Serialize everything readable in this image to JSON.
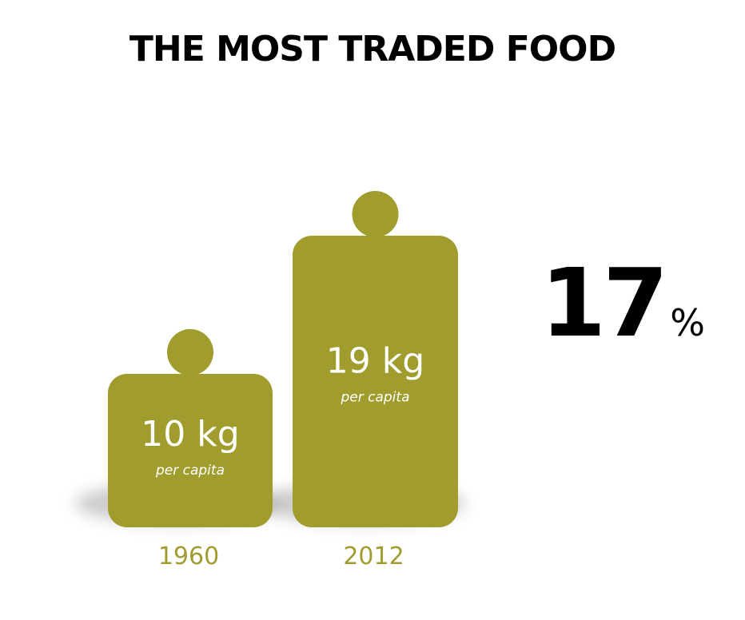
{
  "title": "THE MOST TRADED FOOD",
  "highlight": {
    "value": "17",
    "unit": "%"
  },
  "colors": {
    "weight": "#a09d2e",
    "shadow": "#8f8f8f",
    "value_text": "#ffffff",
    "year_text": "#a09d2e",
    "title_text": "#000000"
  },
  "chart_data": {
    "type": "bar",
    "title": "THE MOST TRADED FOOD",
    "categories": [
      "1960",
      "2012"
    ],
    "values": [
      10,
      19
    ],
    "unit": "kg",
    "value_labels": [
      "10 kg",
      "19 kg"
    ],
    "sub_label": "per capita",
    "xlabel": "",
    "ylabel": "",
    "ylim": [
      0,
      19
    ],
    "grid": false,
    "legend": "none"
  }
}
